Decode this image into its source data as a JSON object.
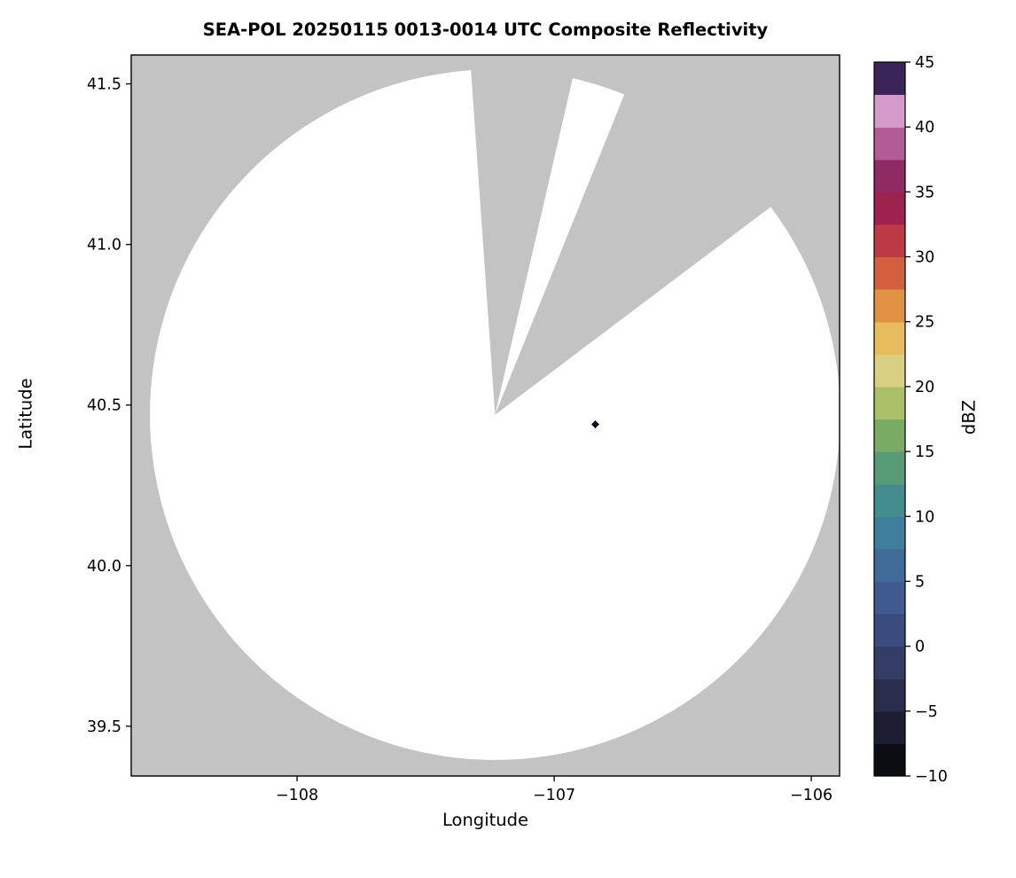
{
  "chart_data": {
    "type": "heatmap",
    "subtype": "radar-composite-reflectivity-map",
    "title": "SEA-POL 20250115 0013-0014 UTC Composite Reflectivity",
    "xlabel": "Longitude",
    "ylabel": "Latitude",
    "xlim": [
      -108.645,
      -105.89
    ],
    "ylim": [
      39.345,
      41.59
    ],
    "xticks": [
      {
        "value": -108,
        "label": "−108"
      },
      {
        "value": -107,
        "label": "−107"
      },
      {
        "value": -106,
        "label": "−106"
      }
    ],
    "yticks": [
      {
        "value": 39.5,
        "label": "39.5"
      },
      {
        "value": 40.0,
        "label": "40.0"
      },
      {
        "value": 40.5,
        "label": "40.5"
      },
      {
        "value": 41.0,
        "label": "41.0"
      },
      {
        "value": 41.5,
        "label": "41.5"
      }
    ],
    "grid": false,
    "legend": false,
    "background_color": "#c3c3c3",
    "frame_color": "#000000",
    "coverage": {
      "center_lon": -107.23,
      "center_lat": 40.47,
      "radius_lat_deg": 1.075,
      "fill": "#ffffff"
    },
    "blocked_sectors": [
      {
        "start_az_deg": -4,
        "end_az_deg": 13
      },
      {
        "start_az_deg": 22,
        "end_az_deg": 53
      }
    ],
    "echo_points": [
      {
        "lon": -106.84,
        "lat": 40.44,
        "color": "#14091f"
      }
    ],
    "colorbar": {
      "label": "dBZ",
      "min": -10,
      "max": 45,
      "ticks": [
        {
          "value": 45,
          "label": "45"
        },
        {
          "value": 40,
          "label": "40"
        },
        {
          "value": 35,
          "label": "35"
        },
        {
          "value": 30,
          "label": "30"
        },
        {
          "value": 25,
          "label": "25"
        },
        {
          "value": 20,
          "label": "20"
        },
        {
          "value": 15,
          "label": "15"
        },
        {
          "value": 10,
          "label": "10"
        },
        {
          "value": 5,
          "label": "5"
        },
        {
          "value": 0,
          "label": "0"
        },
        {
          "value": -5,
          "label": "−5"
        },
        {
          "value": -10,
          "label": "−10"
        }
      ],
      "segment_colors_bottom_to_top": [
        "#0c0c13",
        "#1e1e31",
        "#2a2d4b",
        "#333d65",
        "#3a4b7d",
        "#3f5a8e",
        "#406b98",
        "#3e7d9c",
        "#438d8f",
        "#579b76",
        "#7aab62",
        "#abbf67",
        "#d8cf82",
        "#e8bc5c",
        "#e09142",
        "#d2603e",
        "#bb3a44",
        "#9d2250",
        "#8f2a63",
        "#b25b97",
        "#d49aca",
        "#3a2458"
      ]
    }
  }
}
